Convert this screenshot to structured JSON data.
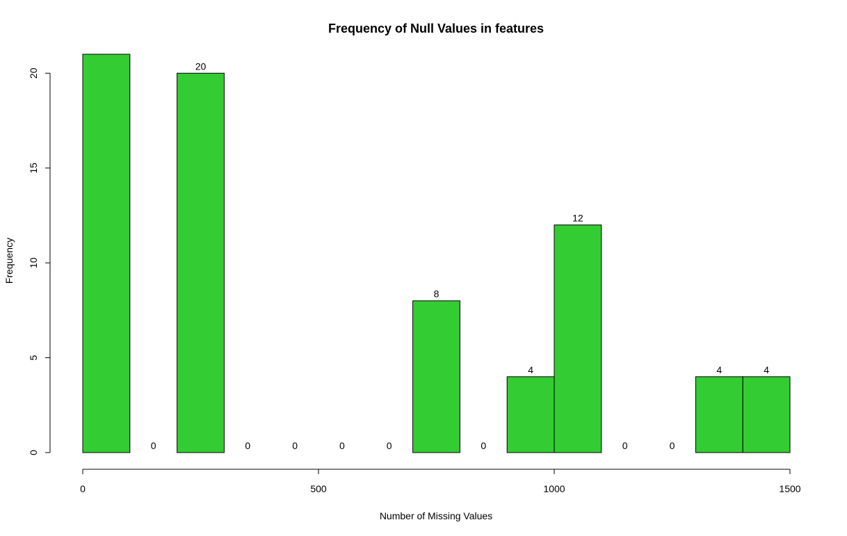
{
  "chart_data": {
    "type": "bar",
    "title": "Frequency of Null Values in features",
    "xlabel": "Number of Missing Values",
    "ylabel": "Frequency",
    "bar_color": "#33CC33",
    "bins": [
      {
        "x0": 0,
        "x1": 100,
        "value": 21,
        "label": ""
      },
      {
        "x0": 100,
        "x1": 200,
        "value": 0,
        "label": "0"
      },
      {
        "x0": 200,
        "x1": 300,
        "value": 20,
        "label": "20"
      },
      {
        "x0": 300,
        "x1": 400,
        "value": 0,
        "label": "0"
      },
      {
        "x0": 400,
        "x1": 500,
        "value": 0,
        "label": "0"
      },
      {
        "x0": 500,
        "x1": 600,
        "value": 0,
        "label": "0"
      },
      {
        "x0": 600,
        "x1": 700,
        "value": 0,
        "label": "0"
      },
      {
        "x0": 700,
        "x1": 800,
        "value": 8,
        "label": "8"
      },
      {
        "x0": 800,
        "x1": 900,
        "value": 0,
        "label": "0"
      },
      {
        "x0": 900,
        "x1": 1000,
        "value": 4,
        "label": "4"
      },
      {
        "x0": 1000,
        "x1": 1100,
        "value": 12,
        "label": "12"
      },
      {
        "x0": 1100,
        "x1": 1200,
        "value": 0,
        "label": "0"
      },
      {
        "x0": 1200,
        "x1": 1300,
        "value": 0,
        "label": "0"
      },
      {
        "x0": 1300,
        "x1": 1400,
        "value": 4,
        "label": "4"
      },
      {
        "x0": 1400,
        "x1": 1500,
        "value": 4,
        "label": "4"
      }
    ],
    "xlim": [
      0,
      1500
    ],
    "ylim": [
      0,
      21
    ],
    "xticks": [
      0,
      500,
      1000,
      1500
    ],
    "yticks": [
      0,
      5,
      10,
      15,
      20
    ],
    "grid": false
  }
}
